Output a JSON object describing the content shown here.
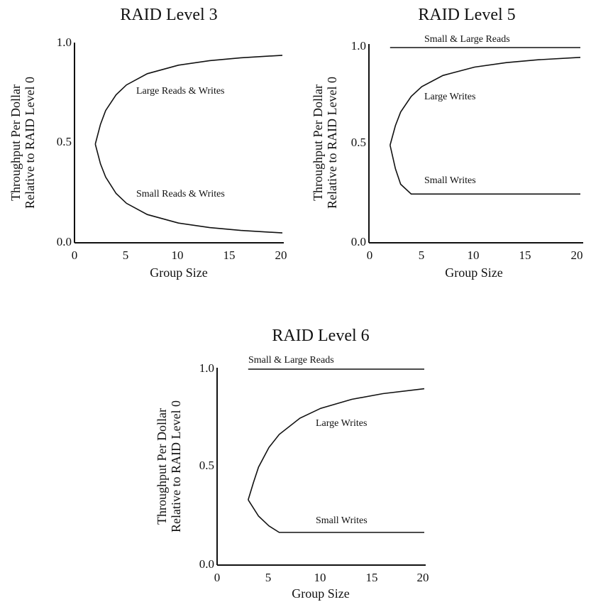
{
  "chart_data": [
    {
      "type": "line",
      "title": "RAID Level 3",
      "xlabel": "Group Size",
      "ylabel": [
        "Throughput Per Dollar",
        "Relative to RAID Level 0"
      ],
      "xlim": [
        0,
        20
      ],
      "ylim": [
        0,
        1
      ],
      "xticks": [
        0,
        5,
        10,
        15,
        20
      ],
      "xtick_labels": [
        "0",
        "5",
        "10",
        "15",
        "20"
      ],
      "yticks": [
        0,
        0.5,
        1
      ],
      "ytick_labels": [
        "0.0",
        "0.5",
        "1.0"
      ],
      "grid": false,
      "series": [
        {
          "name": "Large Reads & Writes",
          "x": [
            2,
            2.5,
            3,
            4,
            5,
            7,
            10,
            13,
            16,
            20
          ],
          "y": [
            0.5,
            0.6,
            0.67,
            0.75,
            0.8,
            0.857,
            0.9,
            0.923,
            0.9375,
            0.95
          ]
        },
        {
          "name": "Small Reads & Writes",
          "x": [
            2,
            2.5,
            3,
            4,
            5,
            7,
            10,
            13,
            16,
            20
          ],
          "y": [
            0.5,
            0.4,
            0.333,
            0.25,
            0.2,
            0.143,
            0.1,
            0.077,
            0.0625,
            0.05
          ]
        }
      ]
    },
    {
      "type": "line",
      "title": "RAID Level 5",
      "xlabel": "Group Size",
      "ylabel": [
        "Throughput Per Dollar",
        "Relative to RAID Level 0"
      ],
      "xlim": [
        0,
        20
      ],
      "ylim": [
        0,
        1
      ],
      "xticks": [
        0,
        5,
        10,
        15,
        20
      ],
      "xtick_labels": [
        "0",
        "5",
        "10",
        "15",
        "20"
      ],
      "yticks": [
        0,
        0.5,
        1
      ],
      "ytick_labels": [
        "0.0",
        "0.5",
        "1.0"
      ],
      "grid": false,
      "series": [
        {
          "name": "Small & Large Reads",
          "x": [
            2,
            20
          ],
          "y": [
            1.0,
            1.0
          ]
        },
        {
          "name": "Large Writes",
          "x": [
            2,
            2.5,
            3,
            4,
            5,
            7,
            10,
            13,
            16,
            20
          ],
          "y": [
            0.5,
            0.6,
            0.67,
            0.75,
            0.8,
            0.857,
            0.9,
            0.923,
            0.9375,
            0.95
          ]
        },
        {
          "name": "Small Writes",
          "x": [
            2,
            2.5,
            3,
            4,
            20
          ],
          "y": [
            0.5,
            0.38,
            0.3,
            0.25,
            0.25
          ]
        }
      ]
    },
    {
      "type": "line",
      "title": "RAID Level 6",
      "xlabel": "Group Size",
      "ylabel": [
        "Throughput Per Dollar",
        "Relative to RAID Level 0"
      ],
      "xlim": [
        0,
        20
      ],
      "ylim": [
        0,
        1
      ],
      "xticks": [
        0,
        5,
        10,
        15,
        20
      ],
      "xtick_labels": [
        "0",
        "5",
        "10",
        "15",
        "20"
      ],
      "yticks": [
        0,
        0.5,
        1
      ],
      "ytick_labels": [
        "0.0",
        "0.5",
        "1.0"
      ],
      "grid": false,
      "series": [
        {
          "name": "Small & Large Reads",
          "x": [
            3,
            20
          ],
          "y": [
            1.0,
            1.0
          ]
        },
        {
          "name": "Large Writes",
          "x": [
            3,
            3.5,
            4,
            5,
            6,
            8,
            10,
            13,
            16,
            20
          ],
          "y": [
            0.333,
            0.42,
            0.5,
            0.6,
            0.667,
            0.75,
            0.8,
            0.846,
            0.875,
            0.9
          ]
        },
        {
          "name": "Small Writes",
          "x": [
            3,
            4,
            5,
            6,
            20
          ],
          "y": [
            0.333,
            0.25,
            0.2,
            0.1667,
            0.1667
          ]
        }
      ]
    }
  ]
}
